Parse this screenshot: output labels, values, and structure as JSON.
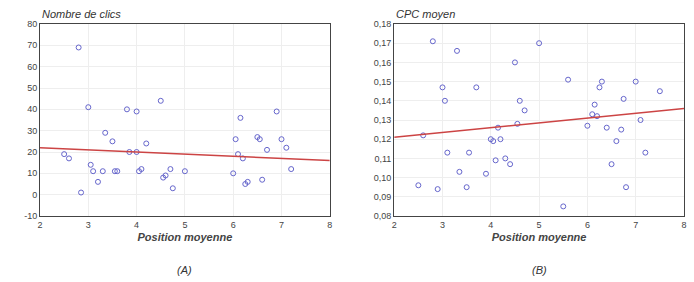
{
  "chart_data": [
    {
      "type": "scatter",
      "title": "Nombre de clics",
      "subtitle": "(A)",
      "xlabel": "Position moyenne",
      "xlim": [
        2,
        8
      ],
      "ylim": [
        -10,
        80
      ],
      "xticks": [
        2,
        3,
        4,
        5,
        6,
        7,
        8
      ],
      "yticks": [
        -10,
        0,
        10,
        20,
        30,
        40,
        50,
        60,
        70,
        80
      ],
      "grid": true,
      "series": [
        {
          "type": "scatter",
          "marker": "circle-open",
          "color": "#6666cc",
          "x": [
            2.5,
            2.6,
            2.8,
            2.85,
            3.0,
            3.05,
            3.1,
            3.2,
            3.3,
            3.35,
            3.5,
            3.55,
            3.6,
            3.8,
            3.85,
            4.0,
            4.0,
            4.05,
            4.1,
            4.2,
            4.5,
            4.55,
            4.6,
            4.7,
            4.75,
            5.0,
            6.0,
            6.05,
            6.1,
            6.15,
            6.2,
            6.25,
            6.3,
            6.5,
            6.55,
            6.6,
            6.7,
            6.9,
            7.0,
            7.1,
            7.2
          ],
          "values": [
            19,
            17,
            69,
            1,
            41,
            14,
            11,
            6,
            11,
            29,
            25,
            11,
            11,
            40,
            20,
            39,
            20,
            11,
            12,
            24,
            44,
            8,
            9,
            12,
            3,
            11,
            10,
            26,
            19,
            36,
            17,
            5,
            6,
            27,
            26,
            7,
            21,
            39,
            26,
            22,
            12
          ]
        },
        {
          "type": "line",
          "line_style": "solid",
          "color": "#cc4444",
          "x": [
            2,
            8
          ],
          "values": [
            22,
            16
          ]
        }
      ]
    },
    {
      "type": "scatter",
      "title": "CPC moyen",
      "subtitle": "(B)",
      "xlabel": "Position moyenne",
      "xlim": [
        2,
        8
      ],
      "ylim": [
        0.08,
        0.18
      ],
      "xticks": [
        2,
        3,
        4,
        5,
        6,
        7,
        8
      ],
      "yticks": [
        {
          "value": 0.08,
          "label": "0,08"
        },
        {
          "value": 0.09,
          "label": "0,09"
        },
        {
          "value": 0.1,
          "label": "0,10"
        },
        {
          "value": 0.11,
          "label": "0,11"
        },
        {
          "value": 0.12,
          "label": "0,12"
        },
        {
          "value": 0.13,
          "label": "0,13"
        },
        {
          "value": 0.14,
          "label": "0,14"
        },
        {
          "value": 0.15,
          "label": "0,15"
        },
        {
          "value": 0.16,
          "label": "0,16"
        },
        {
          "value": 0.17,
          "label": "0,17"
        },
        {
          "value": 0.18,
          "label": "0,18"
        }
      ],
      "grid": true,
      "series": [
        {
          "type": "scatter",
          "marker": "circle-open",
          "color": "#6666cc",
          "x": [
            2.5,
            2.6,
            2.8,
            2.9,
            3.0,
            3.05,
            3.1,
            3.3,
            3.35,
            3.5,
            3.55,
            3.7,
            3.9,
            4.0,
            4.05,
            4.1,
            4.15,
            4.2,
            4.3,
            4.4,
            4.5,
            4.55,
            4.6,
            4.7,
            5.0,
            5.5,
            5.6,
            6.0,
            6.1,
            6.15,
            6.2,
            6.25,
            6.3,
            6.4,
            6.5,
            6.6,
            6.7,
            6.75,
            6.8,
            7.0,
            7.1,
            7.2,
            7.5
          ],
          "values": [
            0.096,
            0.122,
            0.171,
            0.094,
            0.147,
            0.14,
            0.113,
            0.166,
            0.103,
            0.095,
            0.113,
            0.147,
            0.102,
            0.12,
            0.119,
            0.109,
            0.126,
            0.12,
            0.11,
            0.107,
            0.16,
            0.128,
            0.14,
            0.135,
            0.17,
            0.085,
            0.151,
            0.127,
            0.133,
            0.138,
            0.132,
            0.147,
            0.15,
            0.126,
            0.107,
            0.119,
            0.125,
            0.141,
            0.095,
            0.15,
            0.13,
            0.113,
            0.145
          ]
        },
        {
          "type": "line",
          "line_style": "solid",
          "color": "#cc4444",
          "x": [
            2,
            8
          ],
          "values": [
            0.121,
            0.136
          ]
        }
      ]
    }
  ]
}
